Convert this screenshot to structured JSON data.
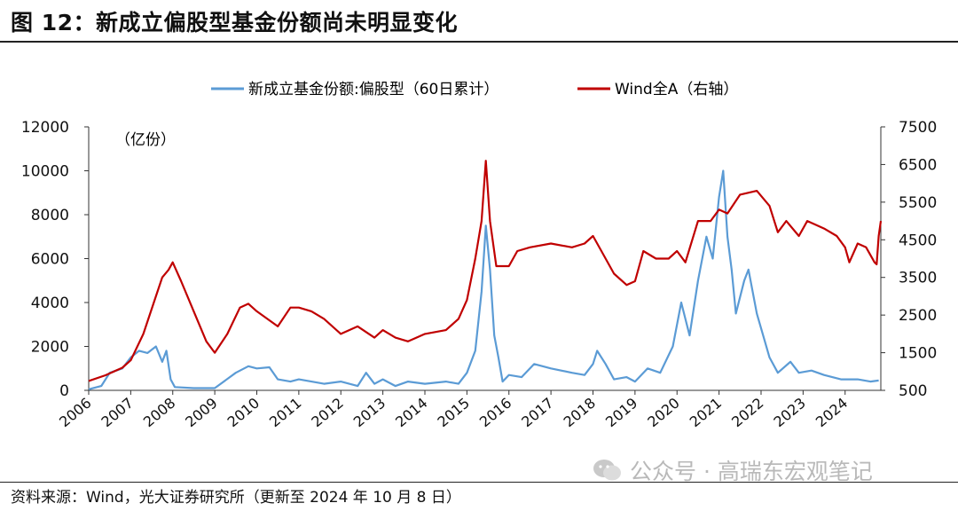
{
  "header": {
    "title": "图 12：新成立偏股型基金份额尚未明显变化"
  },
  "footer": {
    "source": "资料来源：Wind，光大证券研究所（更新至 2024 年 10 月 8 日）"
  },
  "watermark": {
    "text": "公众号 · 高瑞东宏观笔记",
    "icon": "wechat-icon"
  },
  "colors": {
    "fund_share": "#5b9bd5",
    "wind_all_a": "#c00000"
  },
  "chart_data": {
    "type": "line",
    "legend_position": "top-center",
    "grid": false,
    "unit_label": "（亿份）",
    "x_ticks": [
      "2006",
      "2007",
      "2008",
      "2009",
      "2010",
      "2011",
      "2012",
      "2013",
      "2014",
      "2015",
      "2016",
      "2017",
      "2018",
      "2019",
      "2020",
      "2021",
      "2022",
      "2023",
      "2024"
    ],
    "x_range": [
      2006.0,
      2024.85
    ],
    "y_left": {
      "range": [
        0,
        12000
      ],
      "ticks": [
        "0",
        "2000",
        "4000",
        "6000",
        "8000",
        "10000",
        "12000"
      ]
    },
    "y_right": {
      "range": [
        500,
        7500
      ],
      "ticks": [
        "500",
        "1500",
        "2500",
        "3500",
        "4500",
        "5500",
        "6500",
        "7500"
      ]
    },
    "series": [
      {
        "name": "新成立基金份额:偏股型（60日累计）",
        "axis": "left",
        "points": [
          [
            2006.0,
            50
          ],
          [
            2006.3,
            200
          ],
          [
            2006.5,
            800
          ],
          [
            2006.8,
            1000
          ],
          [
            2007.0,
            1500
          ],
          [
            2007.2,
            1800
          ],
          [
            2007.4,
            1700
          ],
          [
            2007.6,
            2000
          ],
          [
            2007.75,
            1300
          ],
          [
            2007.85,
            1800
          ],
          [
            2007.95,
            500
          ],
          [
            2008.05,
            150
          ],
          [
            2008.5,
            100
          ],
          [
            2009.0,
            100
          ],
          [
            2009.5,
            800
          ],
          [
            2009.8,
            1100
          ],
          [
            2010.0,
            1000
          ],
          [
            2010.3,
            1050
          ],
          [
            2010.5,
            500
          ],
          [
            2010.8,
            400
          ],
          [
            2011.0,
            500
          ],
          [
            2011.3,
            400
          ],
          [
            2011.6,
            300
          ],
          [
            2012.0,
            400
          ],
          [
            2012.4,
            200
          ],
          [
            2012.6,
            800
          ],
          [
            2012.8,
            300
          ],
          [
            2013.0,
            500
          ],
          [
            2013.3,
            200
          ],
          [
            2013.6,
            400
          ],
          [
            2014.0,
            300
          ],
          [
            2014.5,
            400
          ],
          [
            2014.8,
            300
          ],
          [
            2015.0,
            800
          ],
          [
            2015.2,
            1800
          ],
          [
            2015.35,
            4500
          ],
          [
            2015.45,
            7500
          ],
          [
            2015.55,
            5500
          ],
          [
            2015.65,
            2500
          ],
          [
            2015.75,
            1500
          ],
          [
            2015.85,
            400
          ],
          [
            2016.0,
            700
          ],
          [
            2016.3,
            600
          ],
          [
            2016.6,
            1200
          ],
          [
            2017.0,
            1000
          ],
          [
            2017.5,
            800
          ],
          [
            2017.8,
            700
          ],
          [
            2018.0,
            1200
          ],
          [
            2018.1,
            1800
          ],
          [
            2018.3,
            1200
          ],
          [
            2018.5,
            500
          ],
          [
            2018.8,
            600
          ],
          [
            2019.0,
            400
          ],
          [
            2019.3,
            1000
          ],
          [
            2019.6,
            800
          ],
          [
            2019.9,
            2000
          ],
          [
            2020.1,
            4000
          ],
          [
            2020.3,
            2500
          ],
          [
            2020.5,
            5000
          ],
          [
            2020.7,
            7000
          ],
          [
            2020.85,
            6000
          ],
          [
            2021.0,
            8800
          ],
          [
            2021.1,
            10000
          ],
          [
            2021.2,
            7000
          ],
          [
            2021.3,
            5500
          ],
          [
            2021.4,
            3500
          ],
          [
            2021.6,
            5000
          ],
          [
            2021.7,
            5500
          ],
          [
            2021.9,
            3500
          ],
          [
            2022.2,
            1500
          ],
          [
            2022.4,
            800
          ],
          [
            2022.7,
            1300
          ],
          [
            2022.9,
            800
          ],
          [
            2023.2,
            900
          ],
          [
            2023.5,
            700
          ],
          [
            2023.9,
            500
          ],
          [
            2024.3,
            500
          ],
          [
            2024.6,
            400
          ],
          [
            2024.8,
            450
          ]
        ]
      },
      {
        "name": "Wind全A（右轴）",
        "axis": "right",
        "points": [
          [
            2006.0,
            750
          ],
          [
            2006.4,
            900
          ],
          [
            2006.8,
            1100
          ],
          [
            2007.0,
            1300
          ],
          [
            2007.3,
            2000
          ],
          [
            2007.6,
            3000
          ],
          [
            2007.75,
            3500
          ],
          [
            2007.9,
            3700
          ],
          [
            2008.0,
            3900
          ],
          [
            2008.2,
            3400
          ],
          [
            2008.5,
            2600
          ],
          [
            2008.8,
            1800
          ],
          [
            2009.0,
            1500
          ],
          [
            2009.3,
            2000
          ],
          [
            2009.6,
            2700
          ],
          [
            2009.8,
            2800
          ],
          [
            2010.0,
            2600
          ],
          [
            2010.5,
            2200
          ],
          [
            2010.8,
            2700
          ],
          [
            2011.0,
            2700
          ],
          [
            2011.3,
            2600
          ],
          [
            2011.6,
            2400
          ],
          [
            2012.0,
            2000
          ],
          [
            2012.4,
            2200
          ],
          [
            2012.8,
            1900
          ],
          [
            2013.0,
            2100
          ],
          [
            2013.3,
            1900
          ],
          [
            2013.6,
            1800
          ],
          [
            2014.0,
            2000
          ],
          [
            2014.5,
            2100
          ],
          [
            2014.8,
            2400
          ],
          [
            2015.0,
            2900
          ],
          [
            2015.2,
            4000
          ],
          [
            2015.35,
            5000
          ],
          [
            2015.45,
            6600
          ],
          [
            2015.55,
            5000
          ],
          [
            2015.7,
            3800
          ],
          [
            2016.0,
            3800
          ],
          [
            2016.2,
            4200
          ],
          [
            2016.5,
            4300
          ],
          [
            2017.0,
            4400
          ],
          [
            2017.5,
            4300
          ],
          [
            2017.8,
            4400
          ],
          [
            2018.0,
            4600
          ],
          [
            2018.2,
            4200
          ],
          [
            2018.5,
            3600
          ],
          [
            2018.8,
            3300
          ],
          [
            2019.0,
            3400
          ],
          [
            2019.2,
            4200
          ],
          [
            2019.5,
            4000
          ],
          [
            2019.8,
            4000
          ],
          [
            2020.0,
            4200
          ],
          [
            2020.2,
            3900
          ],
          [
            2020.5,
            5000
          ],
          [
            2020.8,
            5000
          ],
          [
            2021.0,
            5300
          ],
          [
            2021.2,
            5200
          ],
          [
            2021.5,
            5700
          ],
          [
            2021.9,
            5800
          ],
          [
            2022.2,
            5400
          ],
          [
            2022.4,
            4700
          ],
          [
            2022.6,
            5000
          ],
          [
            2022.9,
            4600
          ],
          [
            2023.1,
            5000
          ],
          [
            2023.5,
            4800
          ],
          [
            2023.8,
            4600
          ],
          [
            2024.0,
            4300
          ],
          [
            2024.1,
            3900
          ],
          [
            2024.3,
            4400
          ],
          [
            2024.5,
            4300
          ],
          [
            2024.7,
            3900
          ],
          [
            2024.75,
            3850
          ],
          [
            2024.8,
            4600
          ],
          [
            2024.85,
            5000
          ]
        ]
      }
    ]
  }
}
